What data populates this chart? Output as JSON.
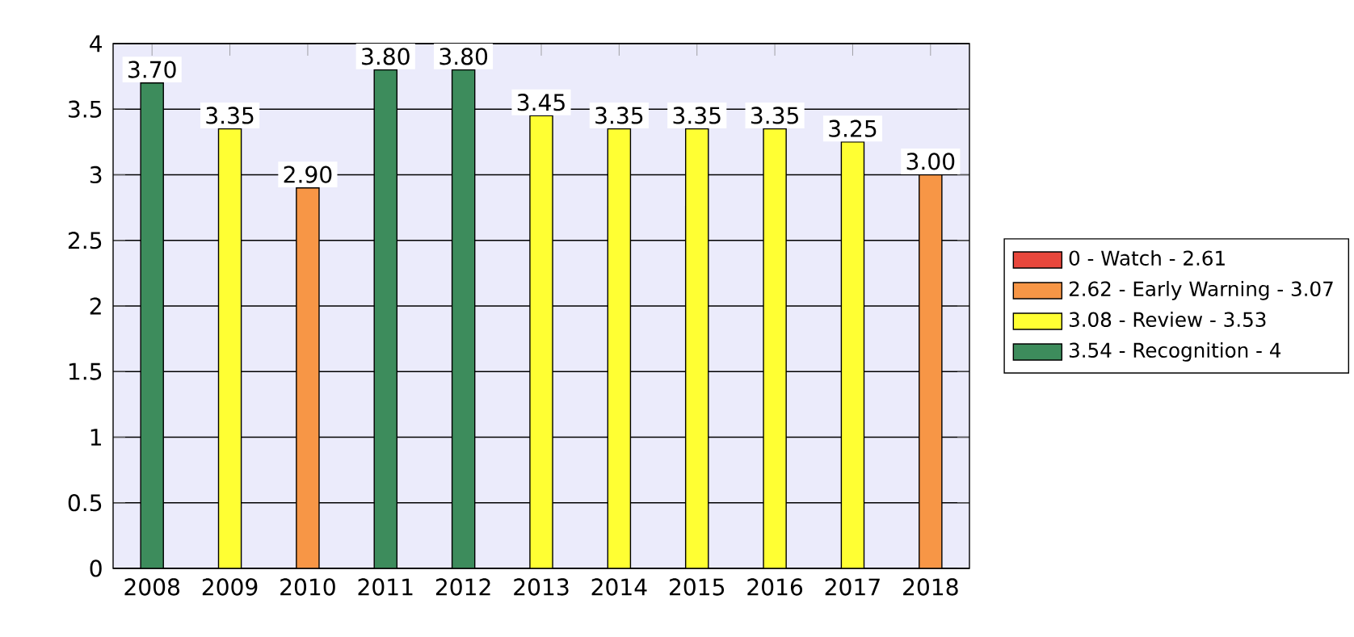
{
  "chart_data": {
    "type": "bar",
    "categories": [
      "2008",
      "2009",
      "2010",
      "2011",
      "2012",
      "2013",
      "2014",
      "2015",
      "2016",
      "2017",
      "2018"
    ],
    "series": [
      {
        "name": "0 - Watch - 2.61",
        "color": "#e8473c",
        "values": [
          null,
          null,
          null,
          null,
          null,
          null,
          null,
          null,
          null,
          null,
          null
        ]
      },
      {
        "name": "2.62 - Early Warning - 3.07",
        "color": "#f79646",
        "values": [
          null,
          null,
          2.9,
          null,
          null,
          null,
          null,
          null,
          null,
          null,
          3.0
        ],
        "value_labels": [
          null,
          null,
          "2.90",
          null,
          null,
          null,
          null,
          null,
          null,
          null,
          "3.00"
        ]
      },
      {
        "name": "3.08 - Review - 3.53",
        "color": "#ffff33",
        "values": [
          null,
          3.35,
          null,
          null,
          null,
          3.45,
          3.35,
          3.35,
          3.35,
          3.25,
          null
        ],
        "value_labels": [
          null,
          "3.35",
          null,
          null,
          null,
          "3.45",
          "3.35",
          "3.35",
          "3.35",
          "3.25",
          null
        ]
      },
      {
        "name": "3.54 - Recognition - 4",
        "color": "#3d8c5c",
        "values": [
          3.7,
          null,
          null,
          3.8,
          3.8,
          null,
          null,
          null,
          null,
          null,
          null
        ],
        "value_labels": [
          "3.70",
          null,
          null,
          "3.80",
          "3.80",
          null,
          null,
          null,
          null,
          null,
          null
        ]
      }
    ],
    "ylim": [
      0,
      4
    ],
    "yticks": [
      0,
      0.5,
      1,
      1.5,
      2,
      2.5,
      3,
      3.5,
      4
    ],
    "grid": "y",
    "legend": "right"
  }
}
